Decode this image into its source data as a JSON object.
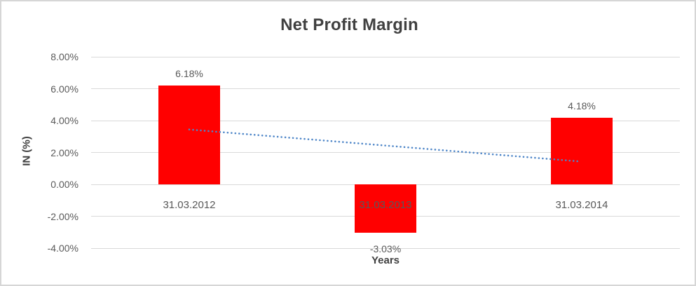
{
  "chart": {
    "background": "#FFFFFF",
    "border_color": "#D6D6D6"
  },
  "chart_data": {
    "type": "bar",
    "title": "Net Profit Margin",
    "xlabel": "Years",
    "ylabel": "IN (%)",
    "categories": [
      "31.03.2012",
      "31.03.2013",
      "31.03.2014"
    ],
    "values": [
      6.18,
      -3.03,
      4.18
    ],
    "value_labels": [
      "6.18%",
      "-3.03%",
      "4.18%"
    ],
    "ytick_values": [
      8,
      6,
      4,
      2,
      0,
      -2,
      -4
    ],
    "ytick_labels": [
      "8.00%",
      "6.00%",
      "4.00%",
      "2.00%",
      "0.00%",
      "-2.00%",
      "-4.00%"
    ],
    "ylim": [
      -4,
      8
    ],
    "grid": true,
    "legend": "none",
    "bar_color": "#FF0000",
    "gridline_color": "#D9D9D9",
    "label_color": "#595959",
    "title_color": "#404040",
    "trendline": {
      "type": "linear",
      "style": "dotted",
      "color": "#4E86C8",
      "start_value": 3.44,
      "end_value": 1.44
    }
  }
}
